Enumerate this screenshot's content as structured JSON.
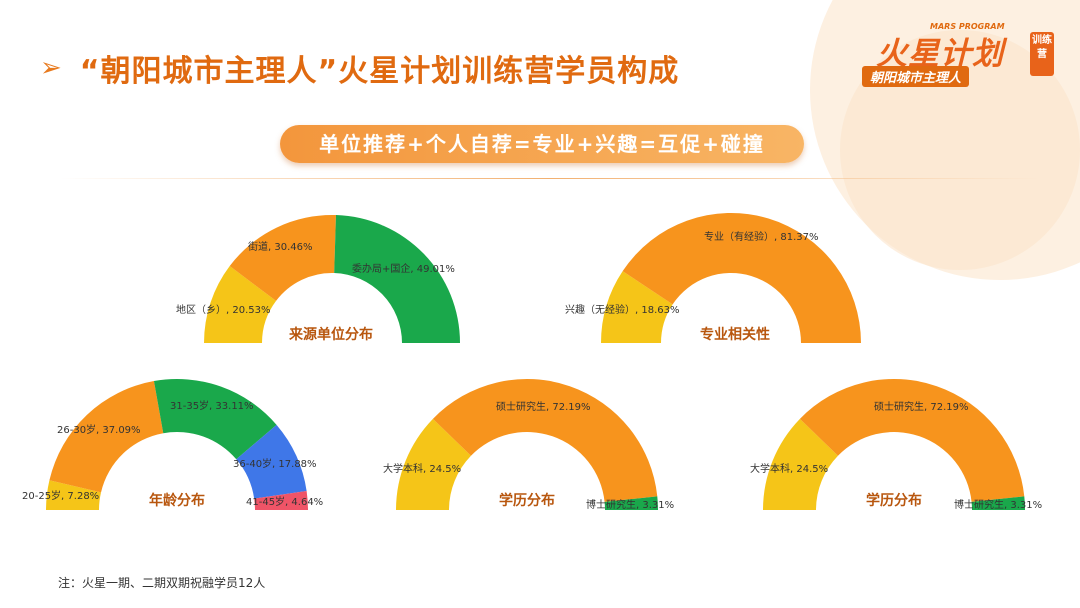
{
  "header": {
    "title": "“朝阳城市主理人”火星计划训练营学员构成",
    "slogan": "单位推荐+个人自荐=专业+兴趣=互促+碰撞"
  },
  "logo": {
    "tag": "MARS PROGRAM",
    "main": "火星计划",
    "side": "训练营",
    "sub": "朝阳城市主理人"
  },
  "footer": {
    "note": "注：火星一期、二期双期祝融学员12人"
  },
  "colors": {
    "accent": "#e06a10",
    "yellow": "#f5c518",
    "orange": "#f7941d",
    "green": "#1aa84b",
    "blue": "#3f77e8",
    "red": "#ef5467"
  },
  "chart_data": [
    {
      "type": "pie",
      "title": "来源单位分布",
      "labels": [
        "地区（乡）, 20.53%",
        "街道, 30.46%",
        "委办局+国企, 49.01%"
      ],
      "values": [
        20.53,
        30.46,
        49.01
      ],
      "colors": [
        "#f5c518",
        "#f7941d",
        "#1aa84b"
      ]
    },
    {
      "type": "pie",
      "title": "专业相关性",
      "labels": [
        "兴趣（无经验）, 18.63%",
        "专业（有经验）, 81.37%"
      ],
      "values": [
        18.63,
        81.37
      ],
      "colors": [
        "#f5c518",
        "#f7941d"
      ]
    },
    {
      "type": "pie",
      "title": "年龄分布",
      "labels": [
        "20-25岁, 7.28%",
        "26-30岁, 37.09%",
        "31-35岁, 33.11%",
        "36-40岁, 17.88%",
        "41-45岁, 4.64%"
      ],
      "values": [
        7.28,
        37.09,
        33.11,
        17.88,
        4.64
      ],
      "colors": [
        "#f5c518",
        "#f7941d",
        "#1aa84b",
        "#3f77e8",
        "#ef5467"
      ]
    },
    {
      "type": "pie",
      "title": "学历分布",
      "labels": [
        "大学本科, 24.5%",
        "硕士研究生, 72.19%",
        "博士研究生, 3.31%"
      ],
      "values": [
        24.5,
        72.19,
        3.31
      ],
      "colors": [
        "#f5c518",
        "#f7941d",
        "#1aa84b"
      ]
    },
    {
      "type": "pie",
      "title": "学历分布",
      "labels": [
        "大学本科, 24.5%",
        "硕士研究生, 72.19%",
        "博士研究生, 3.31%"
      ],
      "values": [
        24.5,
        72.19,
        3.31
      ],
      "colors": [
        "#f5c518",
        "#f7941d",
        "#1aa84b"
      ]
    }
  ]
}
